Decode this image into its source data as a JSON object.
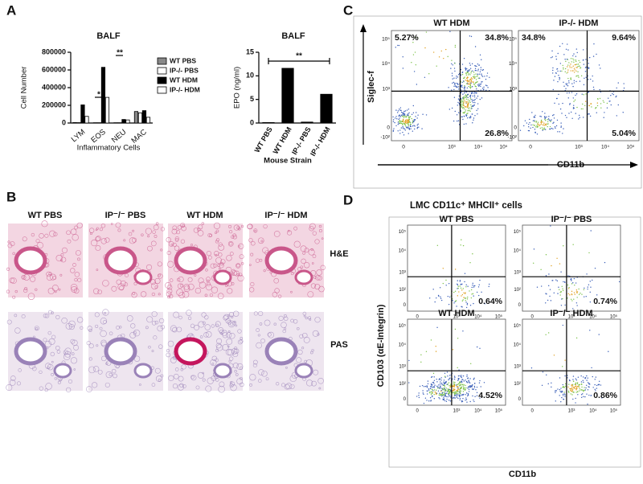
{
  "panel_labels": [
    "A",
    "B",
    "C",
    "D"
  ],
  "chart_data": [
    {
      "type": "bar",
      "title": "BALF",
      "x_label": "Inflammatory Cells",
      "y_label": "Cell Number",
      "categories": [
        "LYM",
        "EOS",
        "NEU",
        "MAC"
      ],
      "series": [
        {
          "name": "WT PBS",
          "color": "#888888",
          "values": [
            5000,
            3000,
            3000,
            130000
          ]
        },
        {
          "name": "IP-/- PBS",
          "color": "#ffffff",
          "values": [
            4000,
            3000,
            3000,
            115000
          ]
        },
        {
          "name": "WT HDM",
          "color": "#000000",
          "values": [
            205000,
            630000,
            40000,
            140000
          ]
        },
        {
          "name": "IP-/- HDM",
          "color": "#ffffff",
          "values": [
            75000,
            290000,
            35000,
            65000
          ]
        }
      ],
      "annotations": [
        "*",
        "**"
      ],
      "ylim": [
        0,
        800000
      ],
      "yticks": [
        0,
        200000,
        400000,
        600000,
        800000
      ]
    },
    {
      "type": "bar",
      "title": "BALF",
      "x_label": "Mouse Strain",
      "y_label": "EPO (ng/ml)",
      "categories": [
        "WT PBS",
        "WT HDM",
        "IP-/- PBS",
        "IP-/- HDM"
      ],
      "values": [
        0.1,
        11.6,
        0.2,
        6.1
      ],
      "color": "#000000",
      "annotations": [
        "**"
      ],
      "ylim": [
        0,
        15
      ],
      "yticks": [
        0,
        5,
        10,
        15
      ]
    }
  ],
  "histology": {
    "columns": [
      "WT PBS",
      "IP⁻/⁻ PBS",
      "WT HDM",
      "IP⁻/⁻ HDM"
    ],
    "rows": [
      "H&E",
      "PAS"
    ]
  },
  "flow_c": {
    "y_label": "Siglec-f",
    "x_label": "CD11b",
    "y_ticks": [
      "10⁵",
      "10⁴",
      "10³",
      "0",
      "-10²"
    ],
    "x_ticks": [
      "0",
      "10³",
      "10⁴",
      "10⁵"
    ],
    "plots": [
      {
        "title": "WT HDM",
        "quadrants": [
          "5.27%",
          "34.8%",
          "26.8%"
        ]
      },
      {
        "title": "IP-/- HDM",
        "quadrants": [
          "34.8%",
          "9.64%",
          "5.04%"
        ]
      }
    ]
  },
  "flow_d": {
    "title": "LMC CD11c⁺ MHCII⁺ cells",
    "y_label": "CD103 (αE-Integrin)",
    "x_label": "CD11b",
    "y_ticks": [
      "10⁵",
      "10⁴",
      "10³",
      "10²",
      "0"
    ],
    "x_ticks": [
      "0",
      "10³",
      "10⁴",
      "10⁵"
    ],
    "plots": [
      {
        "title": "WT PBS",
        "quadrant": "0.64%"
      },
      {
        "title": "IP⁻/⁻ PBS",
        "quadrant": "0.74%"
      },
      {
        "title": "WT HDM",
        "quadrant": "4.52%"
      },
      {
        "title": "IP⁻/⁻ HDM",
        "quadrant": "0.86%"
      }
    ]
  }
}
